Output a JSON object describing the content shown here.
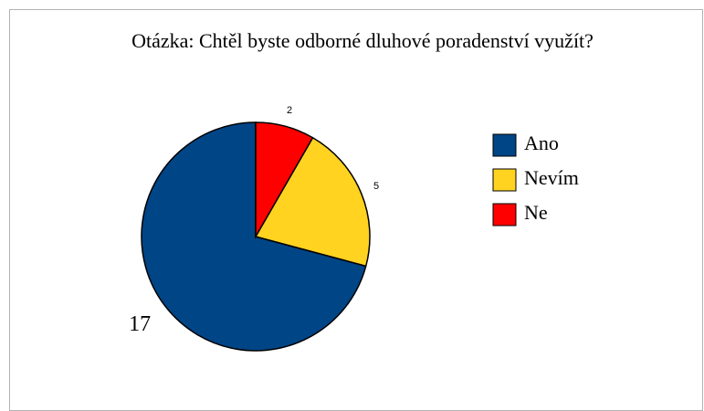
{
  "chart_data": {
    "type": "pie",
    "title": "Otázka: Chtěl byste odborné dluhové poradenství využít?",
    "categories": [
      "Ano",
      "Nevím",
      "Ne"
    ],
    "values": [
      17,
      5,
      2
    ],
    "colors": [
      "#004586",
      "#ffd320",
      "#ff0000"
    ],
    "legend": "right"
  }
}
